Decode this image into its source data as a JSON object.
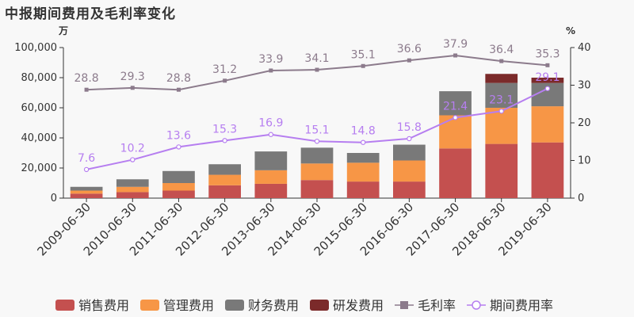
{
  "chart_data": {
    "type": "bar",
    "title": "中报期间费用及毛利率变化",
    "left_unit": "万",
    "right_unit": "%",
    "categories": [
      "2009-06-30",
      "2010-06-30",
      "2011-06-30",
      "2012-06-30",
      "2013-06-30",
      "2014-06-30",
      "2015-06-30",
      "2016-06-30",
      "2017-06-30",
      "2018-06-30",
      "2019-06-30"
    ],
    "y_left_lim": [
      0,
      100000
    ],
    "y_left_ticks": [
      "0",
      "20,000",
      "40,000",
      "60,000",
      "80,000",
      "100,000"
    ],
    "y_right_lim": [
      0,
      40
    ],
    "y_right_ticks": [
      "0",
      "10",
      "20",
      "30",
      "40"
    ],
    "stacked": true,
    "series": [
      {
        "name": "销售费用",
        "kind": "bar",
        "color": "#c4504f",
        "values": [
          3000,
          4000,
          5000,
          8500,
          9500,
          12000,
          11000,
          11000,
          33000,
          36000,
          37000
        ]
      },
      {
        "name": "管理费用",
        "kind": "bar",
        "color": "#f79646",
        "values": [
          2000,
          3500,
          5000,
          7000,
          9000,
          11000,
          12500,
          14000,
          22000,
          24000,
          24000
        ]
      },
      {
        "name": "财务费用",
        "kind": "bar",
        "color": "#797979",
        "values": [
          2500,
          5000,
          8000,
          7000,
          12500,
          10500,
          6500,
          10500,
          16000,
          16500,
          15500
        ]
      },
      {
        "name": "研发费用",
        "kind": "bar",
        "color": "#7b2a2a",
        "values": [
          0,
          0,
          0,
          0,
          0,
          0,
          0,
          0,
          0,
          6000,
          3500
        ]
      },
      {
        "name": "毛利率",
        "kind": "line",
        "axis": "right",
        "color": "#8c7b8c",
        "marker": "square",
        "values": [
          28.8,
          29.3,
          28.8,
          31.2,
          33.9,
          34.1,
          35.1,
          36.6,
          37.9,
          36.4,
          35.3
        ],
        "labels": [
          "28.8",
          "29.3",
          "28.8",
          "31.2",
          "33.9",
          "34.1",
          "35.1",
          "36.6",
          "37.9",
          "36.4",
          "35.3"
        ]
      },
      {
        "name": "期间费用率",
        "kind": "line",
        "axis": "right",
        "color": "#b67ef0",
        "marker": "circle",
        "values": [
          7.6,
          10.2,
          13.6,
          15.3,
          16.9,
          15.1,
          14.8,
          15.8,
          21.4,
          23.1,
          29.1
        ],
        "labels": [
          "7.6",
          "10.2",
          "13.6",
          "15.3",
          "16.9",
          "15.1",
          "14.8",
          "15.8",
          "21.4",
          "23.1",
          "29.1"
        ]
      }
    ],
    "legend_position": "bottom",
    "grid": false
  }
}
